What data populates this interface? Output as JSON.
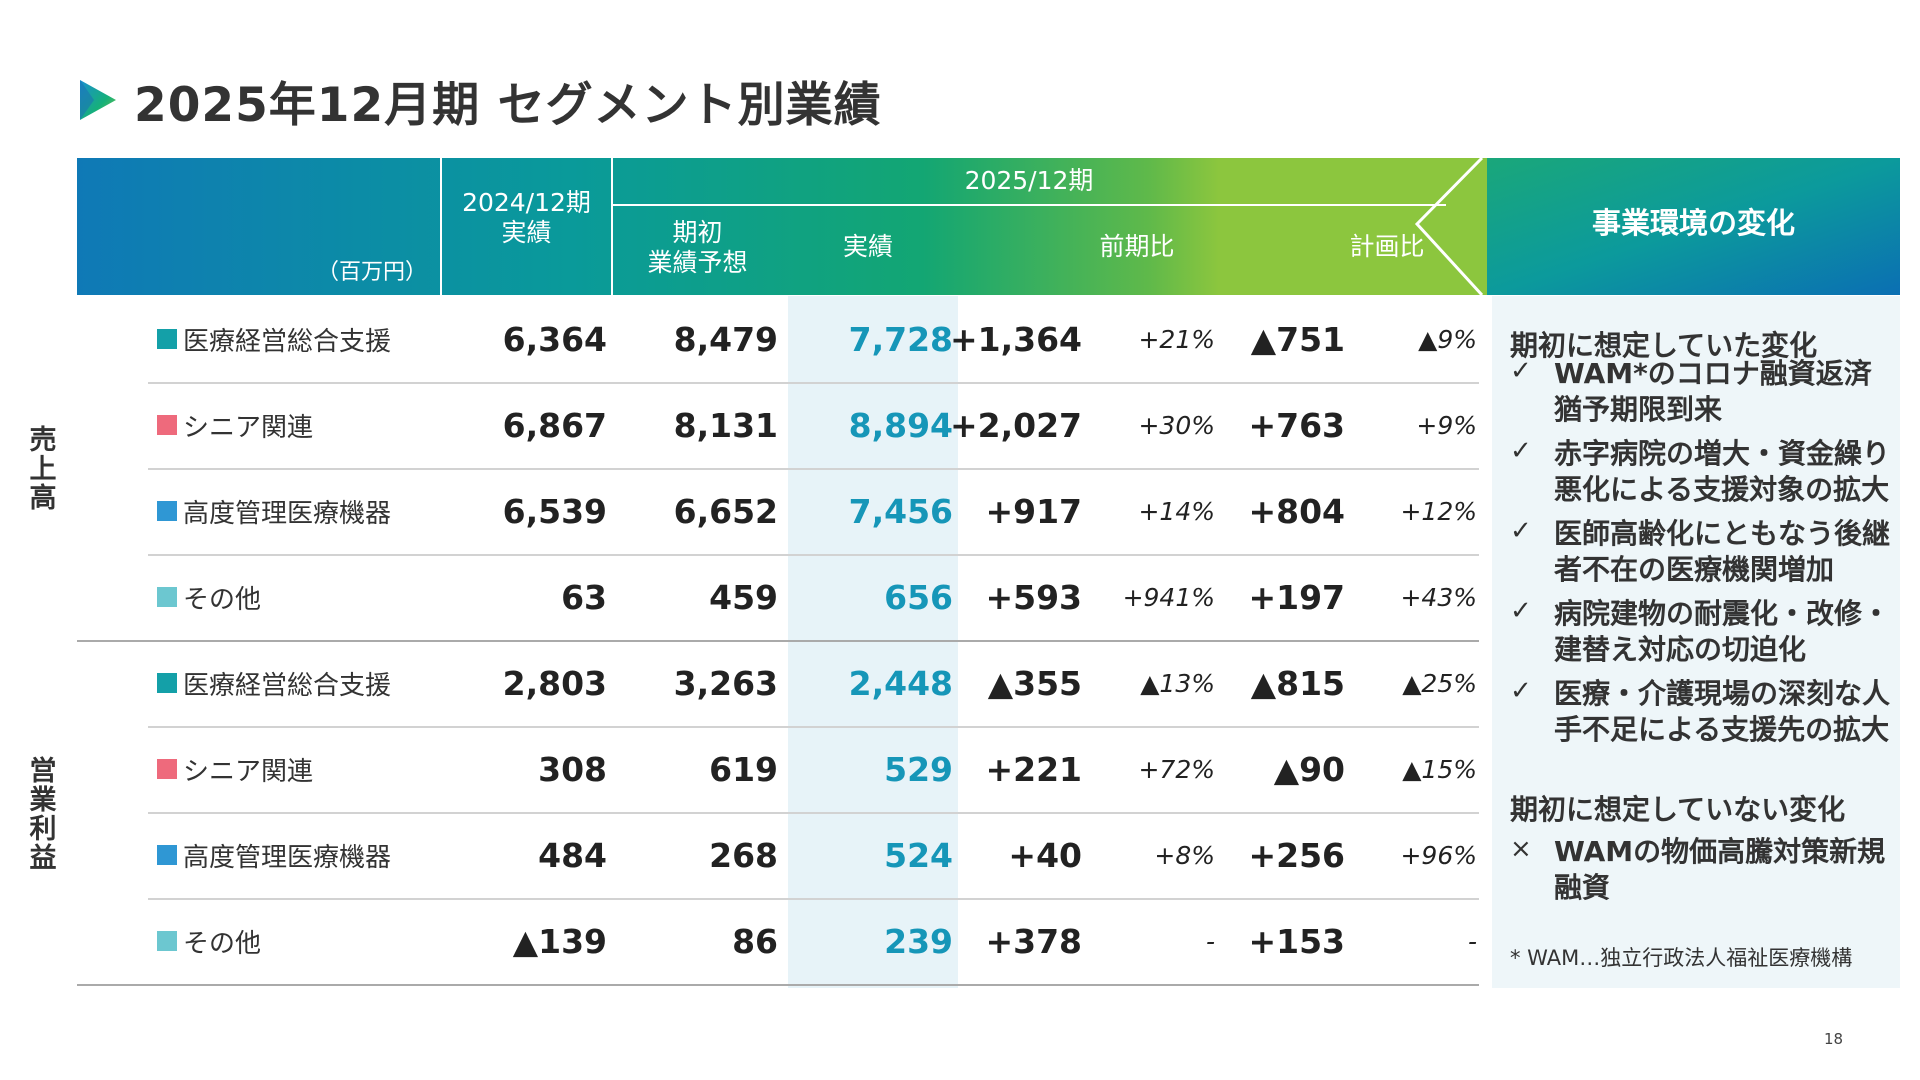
{
  "title": "2025年12月期 セグメント別業績",
  "header": {
    "unit": "（百万円）",
    "col_prev": "2024/12期\n実績",
    "group_label": "2025/12期",
    "col_forecast": "期初\n業績予想",
    "col_actual": "実績",
    "col_yoy": "前期比",
    "col_vsplan": "計画比",
    "panel_title": "事業環境の変化"
  },
  "groups": [
    {
      "label": "売上高"
    },
    {
      "label": "営業利益"
    }
  ],
  "colors": {
    "medical": "#14a0a8",
    "senior": "#ee6a7c",
    "equipment": "#2f97d4",
    "other": "#6cc7d0",
    "actual": "#1696b8"
  },
  "rows": [
    {
      "segment": "医療経営総合支援",
      "prev": "6,364",
      "forecast": "8,479",
      "actual": "7,728",
      "yoy": "+1,364",
      "yoy_pct": "+21%",
      "vsplan": "▲751",
      "vsplan_pct": "▲9%"
    },
    {
      "segment": "シニア関連",
      "prev": "6,867",
      "forecast": "8,131",
      "actual": "8,894",
      "yoy": "+2,027",
      "yoy_pct": "+30%",
      "vsplan": "+763",
      "vsplan_pct": "+9%"
    },
    {
      "segment": "高度管理医療機器",
      "prev": "6,539",
      "forecast": "6,652",
      "actual": "7,456",
      "yoy": "+917",
      "yoy_pct": "+14%",
      "vsplan": "+804",
      "vsplan_pct": "+12%"
    },
    {
      "segment": "その他",
      "prev": "63",
      "forecast": "459",
      "actual": "656",
      "yoy": "+593",
      "yoy_pct": "+941%",
      "vsplan": "+197",
      "vsplan_pct": "+43%"
    },
    {
      "segment": "医療経営総合支援",
      "prev": "2,803",
      "forecast": "3,263",
      "actual": "2,448",
      "yoy": "▲355",
      "yoy_pct": "▲13%",
      "vsplan": "▲815",
      "vsplan_pct": "▲25%"
    },
    {
      "segment": "シニア関連",
      "prev": "308",
      "forecast": "619",
      "actual": "529",
      "yoy": "+221",
      "yoy_pct": "+72%",
      "vsplan": "▲90",
      "vsplan_pct": "▲15%"
    },
    {
      "segment": "高度管理医療機器",
      "prev": "484",
      "forecast": "268",
      "actual": "524",
      "yoy": "+40",
      "yoy_pct": "+8%",
      "vsplan": "+256",
      "vsplan_pct": "+96%"
    },
    {
      "segment": "その他",
      "prev": "▲139",
      "forecast": "86",
      "actual": "239",
      "yoy": "+378",
      "yoy_pct": "-",
      "vsplan": "+153",
      "vsplan_pct": "-"
    }
  ],
  "panel": {
    "expected_heading": "期初に想定していた変化",
    "expected_items": [
      {
        "mark": "✓",
        "text": "WAM*のコロナ融資返済猶予期限到来"
      },
      {
        "mark": "✓",
        "text": "赤字病院の増大・資金繰り悪化による支援対象の拡大"
      },
      {
        "mark": "✓",
        "text": "医師高齢化にともなう後継者不在の医療機関増加"
      },
      {
        "mark": "✓",
        "text": "病院建物の耐震化・改修・建替え対応の切迫化"
      },
      {
        "mark": "✓",
        "text": "医療・介護現場の深刻な人手不足による支援先の拡大"
      }
    ],
    "unexpected_heading": "期初に想定していない変化",
    "unexpected_items": [
      {
        "mark": "×",
        "text": "WAMの物価高騰対策新規融資"
      }
    ],
    "note": "* WAM…独立行政法人福祉医療機構"
  },
  "page_number": "18"
}
